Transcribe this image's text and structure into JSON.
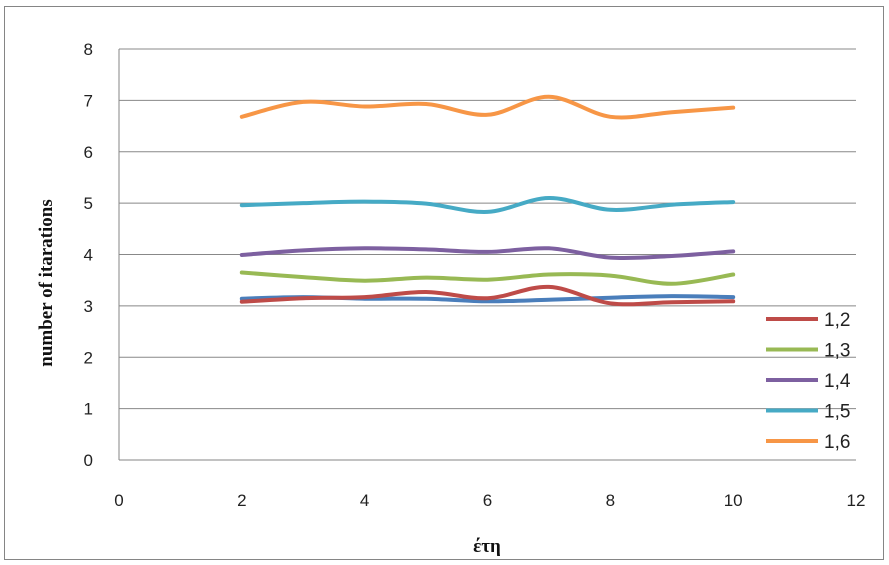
{
  "chart_data": {
    "type": "line",
    "title": "",
    "xlabel": "έτη",
    "ylabel": "number of itarations",
    "xlim": [
      0,
      12
    ],
    "ylim": [
      0,
      8
    ],
    "xticks": [
      0,
      2,
      4,
      6,
      8,
      10,
      12
    ],
    "yticks": [
      0,
      1,
      2,
      3,
      4,
      5,
      6,
      7,
      8
    ],
    "grid": "horizontal",
    "legend_position": "right",
    "x": [
      2,
      3,
      4,
      5,
      6,
      7,
      8,
      9,
      10
    ],
    "series": [
      {
        "name": "1,2",
        "color": "#BE4B48",
        "values": [
          3.08,
          3.15,
          3.17,
          3.27,
          3.15,
          3.37,
          3.05,
          3.07,
          3.09
        ]
      },
      {
        "name": "1,3",
        "color": "#98B954",
        "values": [
          3.65,
          3.56,
          3.49,
          3.55,
          3.51,
          3.61,
          3.59,
          3.43,
          3.61
        ]
      },
      {
        "name": "1,4",
        "color": "#7D60A0",
        "values": [
          3.99,
          4.08,
          4.12,
          4.1,
          4.05,
          4.12,
          3.94,
          3.97,
          4.06
        ]
      },
      {
        "name": "1,5",
        "color": "#46AAC5",
        "values": [
          4.96,
          5.0,
          5.03,
          4.99,
          4.83,
          5.1,
          4.87,
          4.97,
          5.02
        ]
      },
      {
        "name": "1,6",
        "color": "#F79646",
        "values": [
          6.68,
          6.97,
          6.88,
          6.93,
          6.72,
          7.07,
          6.68,
          6.77,
          6.86
        ]
      },
      {
        "name": "",
        "color": "#4A7EBB",
        "values": [
          3.14,
          3.17,
          3.14,
          3.14,
          3.09,
          3.12,
          3.16,
          3.19,
          3.17
        ]
      }
    ]
  }
}
